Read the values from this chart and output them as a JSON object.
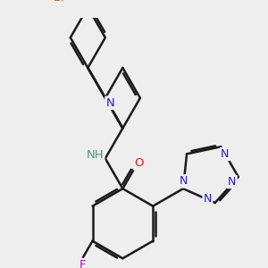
{
  "bg_color": "#eeeeee",
  "bond_color": "#1a1a1a",
  "N_color": "#2020cc",
  "O_color": "#cc2020",
  "F_color": "#cc00cc",
  "Br_color": "#cc6600",
  "NH_color": "#4a9a8a",
  "bond_width": 1.8,
  "dbo": 0.055,
  "fs": 9.5,
  "fig_w": 3.0,
  "fig_h": 3.0,
  "dpi": 100,
  "xlim": [
    -0.5,
    6.0
  ],
  "ylim": [
    -1.2,
    4.8
  ]
}
